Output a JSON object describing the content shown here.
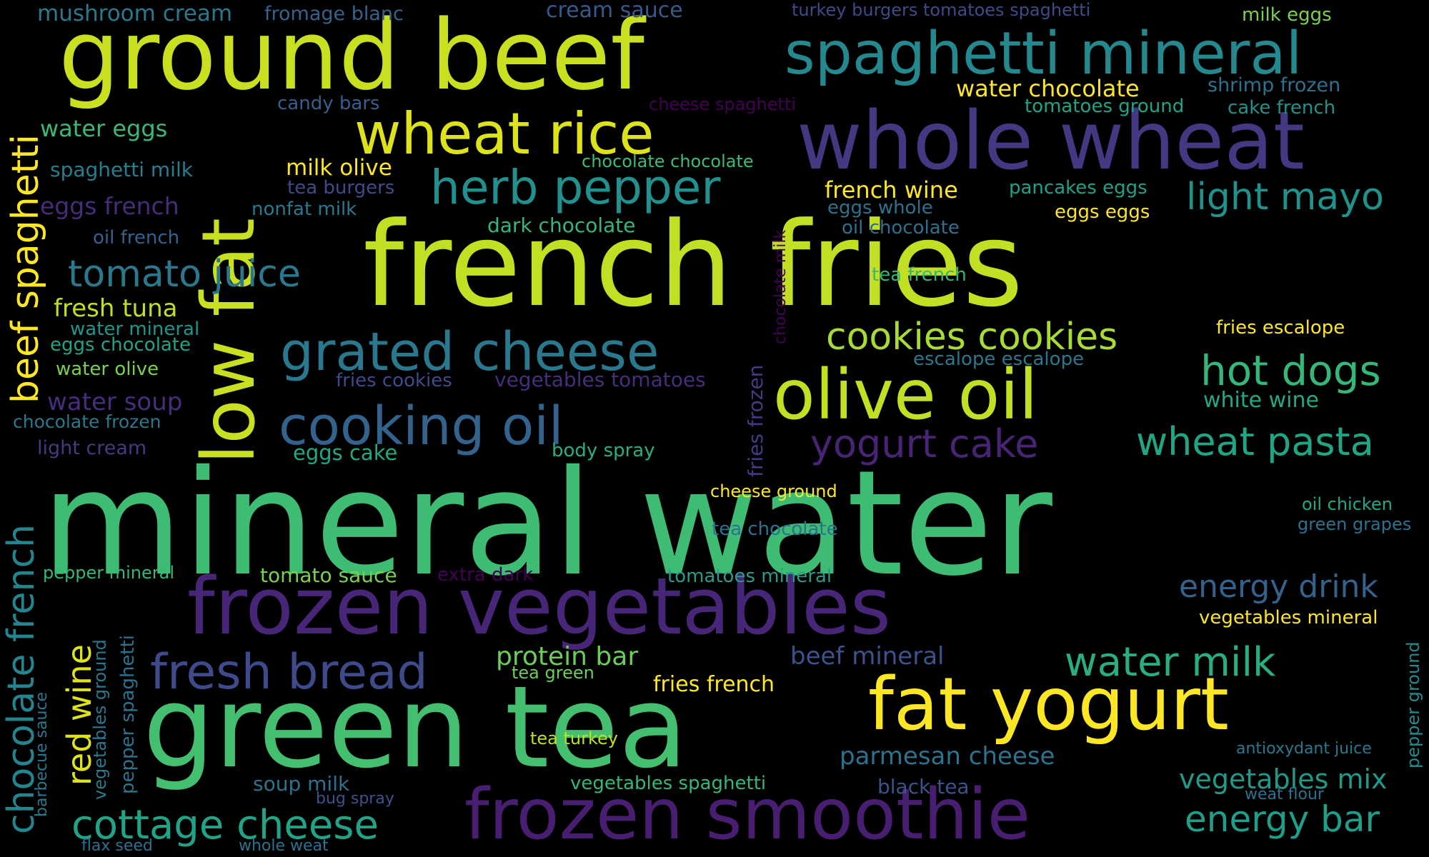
{
  "words": [
    {
      "text": "mineral water",
      "color": "#3fbc73"
    },
    {
      "text": "french fries",
      "color": "#c2df23"
    },
    {
      "text": "ground beef",
      "color": "#c8e020"
    },
    {
      "text": "green tea",
      "color": "#44bf70"
    },
    {
      "text": "frozen vegetables",
      "color": "#482677"
    },
    {
      "text": "whole wheat",
      "color": "#453781"
    },
    {
      "text": "frozen smoothie",
      "color": "#481f70"
    },
    {
      "text": "spaghetti mineral",
      "color": "#23898e"
    },
    {
      "text": "olive oil",
      "color": "#c2df23"
    },
    {
      "text": "fat yogurt",
      "color": "#fde725"
    },
    {
      "text": "low fat",
      "color": "#c8e020"
    },
    {
      "text": "wheat rice",
      "color": "#dde318"
    },
    {
      "text": "grated cheese",
      "color": "#2a788e"
    },
    {
      "text": "cooking oil",
      "color": "#33638d"
    },
    {
      "text": "herb pepper",
      "color": "#22908d"
    },
    {
      "text": "fresh bread",
      "color": "#3e4a89"
    },
    {
      "text": "cottage cheese",
      "color": "#20a386"
    },
    {
      "text": "tomato juice",
      "color": "#2a788e"
    },
    {
      "text": "beef spaghetti",
      "color": "#fde725"
    },
    {
      "text": "chocolate french",
      "color": "#25858e"
    },
    {
      "text": "cookies cookies",
      "color": "#a8db34"
    },
    {
      "text": "hot dogs",
      "color": "#35b779"
    },
    {
      "text": "light mayo",
      "color": "#21918c"
    },
    {
      "text": "yogurt cake",
      "color": "#482475"
    },
    {
      "text": "wheat pasta",
      "color": "#21a685"
    },
    {
      "text": "water milk",
      "color": "#28ae80"
    },
    {
      "text": "energy drink",
      "color": "#33638d"
    },
    {
      "text": "energy bar",
      "color": "#1f9e89"
    },
    {
      "text": "red wine",
      "color": "#dde318"
    },
    {
      "text": "vegetables mix",
      "color": "#1f9a8a"
    },
    {
      "text": "protein bar",
      "color": "#6ccd5a"
    },
    {
      "text": "parmesan cheese",
      "color": "#2c728e"
    },
    {
      "text": "beef mineral",
      "color": "#3b528b"
    },
    {
      "text": "fresh tuna",
      "color": "#bddf26"
    },
    {
      "text": "water chocolate",
      "color": "#fde725"
    },
    {
      "text": "french wine",
      "color": "#fde725"
    },
    {
      "text": "mushroom cream",
      "color": "#2a788e"
    },
    {
      "text": "fromage blanc",
      "color": "#33638d"
    },
    {
      "text": "cream sauce",
      "color": "#38598c"
    },
    {
      "text": "turkey burgers tomatoes spaghetti",
      "color": "#3e4a89"
    },
    {
      "text": "milk eggs",
      "color": "#7ad151"
    },
    {
      "text": "shrimp frozen",
      "color": "#2c728e"
    },
    {
      "text": "tomatoes ground",
      "color": "#20a386"
    },
    {
      "text": "cake french",
      "color": "#22908d"
    },
    {
      "text": "candy bars",
      "color": "#355f8d"
    },
    {
      "text": "cheese spaghetti",
      "color": "#440154"
    },
    {
      "text": "water eggs",
      "color": "#38b977"
    },
    {
      "text": "spaghetti milk",
      "color": "#287d8e"
    },
    {
      "text": "milk olive",
      "color": "#fde725"
    },
    {
      "text": "tea burgers",
      "color": "#3e4a89"
    },
    {
      "text": "chocolate chocolate",
      "color": "#3fbc73"
    },
    {
      "text": "eggs french",
      "color": "#472c7a"
    },
    {
      "text": "nonfat milk",
      "color": "#2a788e"
    },
    {
      "text": "dark chocolate",
      "color": "#35b779"
    },
    {
      "text": "pancakes eggs",
      "color": "#1fa088"
    },
    {
      "text": "eggs whole",
      "color": "#2c728e"
    },
    {
      "text": "eggs eggs",
      "color": "#fde725"
    },
    {
      "text": "oil chocolate",
      "color": "#2d708e"
    },
    {
      "text": "oil french",
      "color": "#33638d"
    },
    {
      "text": "tea french",
      "color": "#35b779"
    },
    {
      "text": "chocolate milk",
      "color": "#440154"
    },
    {
      "text": "fries escalope",
      "color": "#fde725"
    },
    {
      "text": "water mineral",
      "color": "#1f968b"
    },
    {
      "text": "eggs chocolate",
      "color": "#20a386"
    },
    {
      "text": "water olive",
      "color": "#7ad151"
    },
    {
      "text": "escalope escalope",
      "color": "#2a788e"
    },
    {
      "text": "fries cookies",
      "color": "#3e4a89"
    },
    {
      "text": "vegetables tomatoes",
      "color": "#472d7b"
    },
    {
      "text": "fries frozen",
      "color": "#443983"
    },
    {
      "text": "white wine",
      "color": "#22a884"
    },
    {
      "text": "water soup",
      "color": "#472d7b"
    },
    {
      "text": "chocolate frozen",
      "color": "#2a788e"
    },
    {
      "text": "light cream",
      "color": "#443983"
    },
    {
      "text": "eggs cake",
      "color": "#22a884"
    },
    {
      "text": "body spray",
      "color": "#29af7f"
    },
    {
      "text": "cheese ground",
      "color": "#fde725"
    },
    {
      "text": "oil chicken",
      "color": "#22a884"
    },
    {
      "text": "green grapes",
      "color": "#2c728e"
    },
    {
      "text": "tea chocolate",
      "color": "#2c728e"
    },
    {
      "text": "pepper mineral",
      "color": "#35b779"
    },
    {
      "text": "tomato sauce",
      "color": "#7ad151"
    },
    {
      "text": "extra dark",
      "color": "#440154"
    },
    {
      "text": "tomatoes mineral",
      "color": "#2a9b89"
    },
    {
      "text": "vegetables mineral",
      "color": "#fde725"
    },
    {
      "text": "vegetables ground",
      "color": "#2a788e"
    },
    {
      "text": "pepper spaghetti",
      "color": "#2c728e"
    },
    {
      "text": "barbecue sauce",
      "color": "#2a788e"
    },
    {
      "text": "tea green",
      "color": "#6ccd5a"
    },
    {
      "text": "fries french",
      "color": "#fde725"
    },
    {
      "text": "pepper ground",
      "color": "#238a8d"
    },
    {
      "text": "antioxydant juice",
      "color": "#2a788e"
    },
    {
      "text": "weat flour",
      "color": "#2c728e"
    },
    {
      "text": "tea turkey",
      "color": "#bddf26"
    },
    {
      "text": "soup milk",
      "color": "#2c728e"
    },
    {
      "text": "bug spray",
      "color": "#3b528b"
    },
    {
      "text": "vegetables spaghetti",
      "color": "#35b779"
    },
    {
      "text": "black tea",
      "color": "#3b528b"
    },
    {
      "text": "flax seed",
      "color": "#2c728e"
    },
    {
      "text": "whole weat",
      "color": "#2c728e"
    }
  ]
}
